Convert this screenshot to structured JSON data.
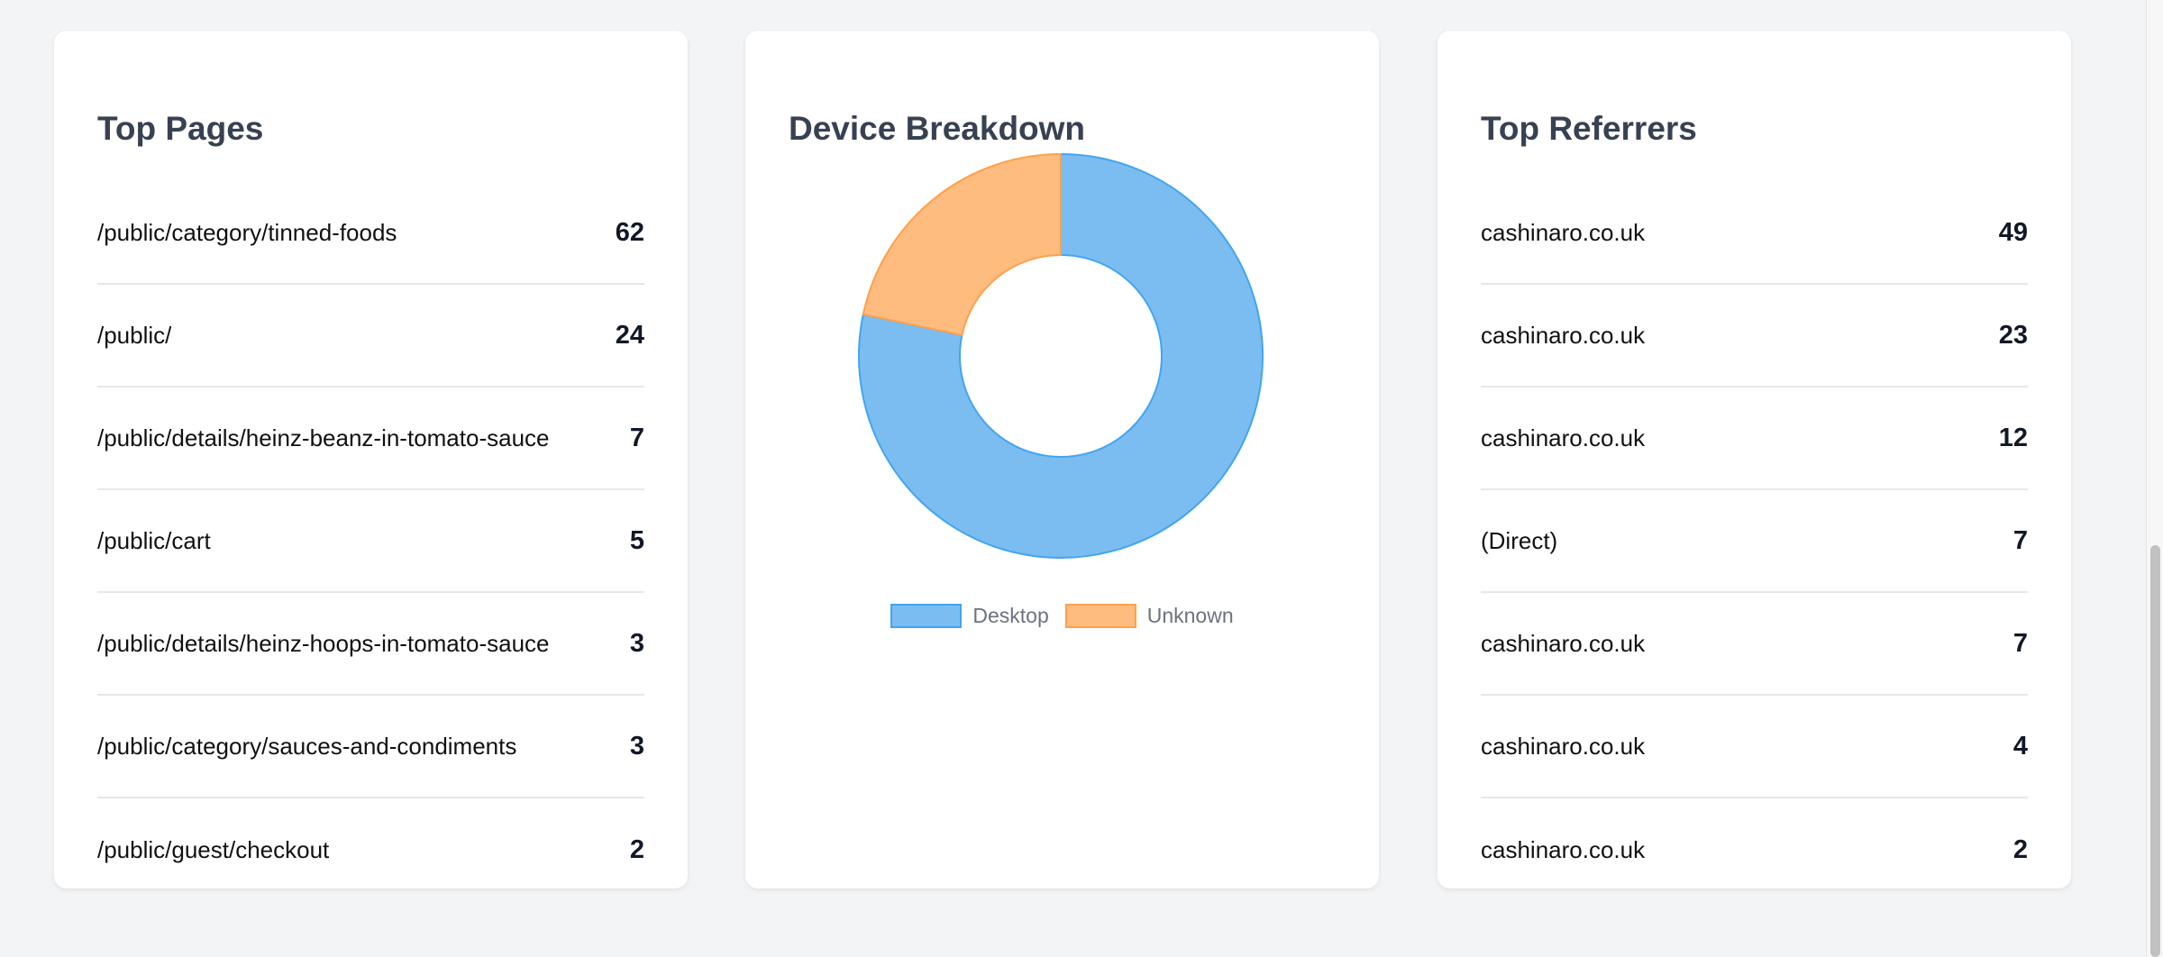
{
  "top_pages": {
    "title": "Top Pages",
    "items": [
      {
        "label": "/public/category/tinned-foods",
        "value": "62"
      },
      {
        "label": "/public/",
        "value": "24"
      },
      {
        "label": "/public/details/heinz-beanz-in-tomato-sauce",
        "value": "7"
      },
      {
        "label": "/public/cart",
        "value": "5"
      },
      {
        "label": "/public/details/heinz-hoops-in-tomato-sauce",
        "value": "3"
      },
      {
        "label": "/public/category/sauces-and-condiments",
        "value": "3"
      },
      {
        "label": "/public/guest/checkout",
        "value": "2"
      }
    ]
  },
  "device_breakdown": {
    "title": "Device Breakdown"
  },
  "chart_data": {
    "type": "pie",
    "variant": "doughnut",
    "categories": [
      "Desktop",
      "Unknown"
    ],
    "values": [
      83,
      23
    ],
    "colors": {
      "Desktop": {
        "fill": "#7bbdf1",
        "border": "#42a5f0"
      },
      "Unknown": {
        "fill": "#ffbc7e",
        "border": "#fda14d"
      }
    },
    "legend": "bottom"
  },
  "top_referrers": {
    "title": "Top Referrers",
    "items": [
      {
        "label": "cashinaro.co.uk",
        "value": "49"
      },
      {
        "label": "cashinaro.co.uk",
        "value": "23"
      },
      {
        "label": "cashinaro.co.uk",
        "value": "12"
      },
      {
        "label": "(Direct)",
        "value": "7"
      },
      {
        "label": "cashinaro.co.uk",
        "value": "7"
      },
      {
        "label": "cashinaro.co.uk",
        "value": "4"
      },
      {
        "label": "cashinaro.co.uk",
        "value": "2"
      }
    ]
  }
}
